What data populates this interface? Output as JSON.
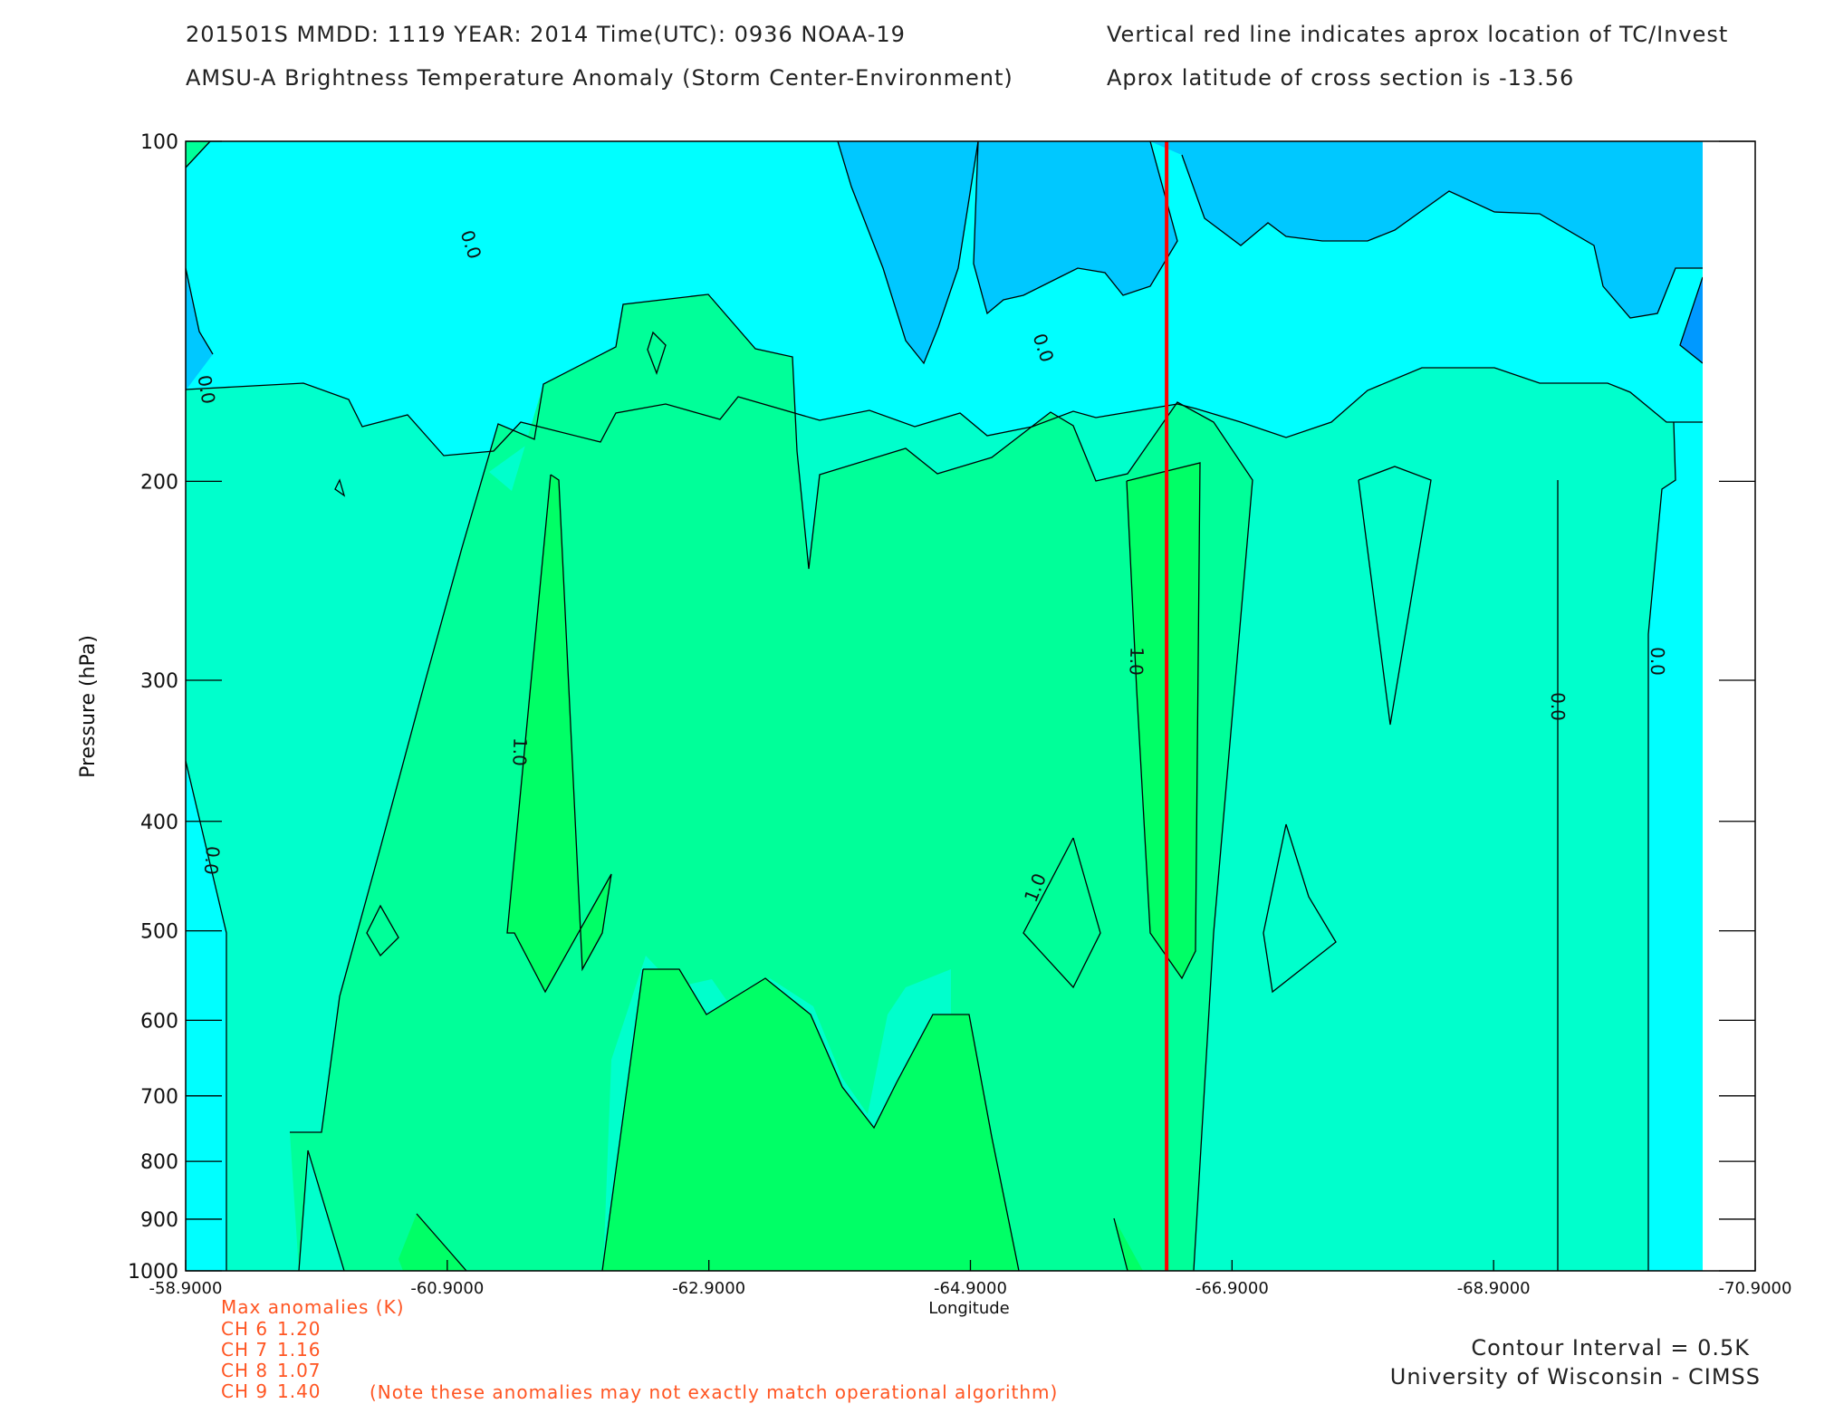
{
  "header": {
    "line1_left": "201501S  MMDD: 1119 YEAR: 2014 Time(UTC): 0936 NOAA-19",
    "line2_left": "AMSU-A Brightness Temperature Anomaly (Storm Center-Environment)",
    "line1_right": "Vertical red line indicates aprox location of TC/Invest",
    "line2_right": "Aprox latitude of cross section is -13.56"
  },
  "colors": {
    "level_-0.5": "#00c8ff",
    "level_-1.0": "#0099ff",
    "level_0.0": "#00ffff",
    "level_0.5": "#00ffcc",
    "level_1.0": "#00ff99",
    "level_1.5": "#00ff66",
    "storm_line": "#ff0000",
    "contour_line": "#000000",
    "annotation": "#ff5522"
  },
  "chart_data": {
    "type": "contour",
    "xlabel": "Longitude",
    "ylabel": "Pressure (hPa)",
    "xlim": [
      -58.9,
      -70.9
    ],
    "ylim": [
      1000,
      100
    ],
    "y_scale": "log",
    "x_ticks": [
      "-58.9000",
      "-60.9000",
      "-62.9000",
      "-64.9000",
      "-66.9000",
      "-68.9000",
      "-70.9000"
    ],
    "y_ticks": [
      "100",
      "200",
      "300",
      "400",
      "500",
      "600",
      "700",
      "800",
      "900",
      "1000"
    ],
    "storm_longitude": -66.4,
    "contour_labels": [
      "0.0",
      "0.0",
      "0.0",
      "0.0",
      "0.0",
      "0.0",
      "1.0",
      "1.0",
      "1.0"
    ],
    "max_anomalies": {
      "title": "Max anomalies (K)",
      "channels": [
        {
          "label": "CH 6",
          "value": "1.20"
        },
        {
          "label": "CH 7",
          "value": "1.16"
        },
        {
          "label": "CH 8",
          "value": "1.07"
        },
        {
          "label": "CH 9",
          "value": "1.40"
        }
      ],
      "note": "(Note these anomalies may not exactly match operational algorithm)"
    }
  },
  "footer": {
    "contour_interval": "Contour Interval = 0.5K",
    "credit": "University of Wisconsin - CIMSS"
  }
}
